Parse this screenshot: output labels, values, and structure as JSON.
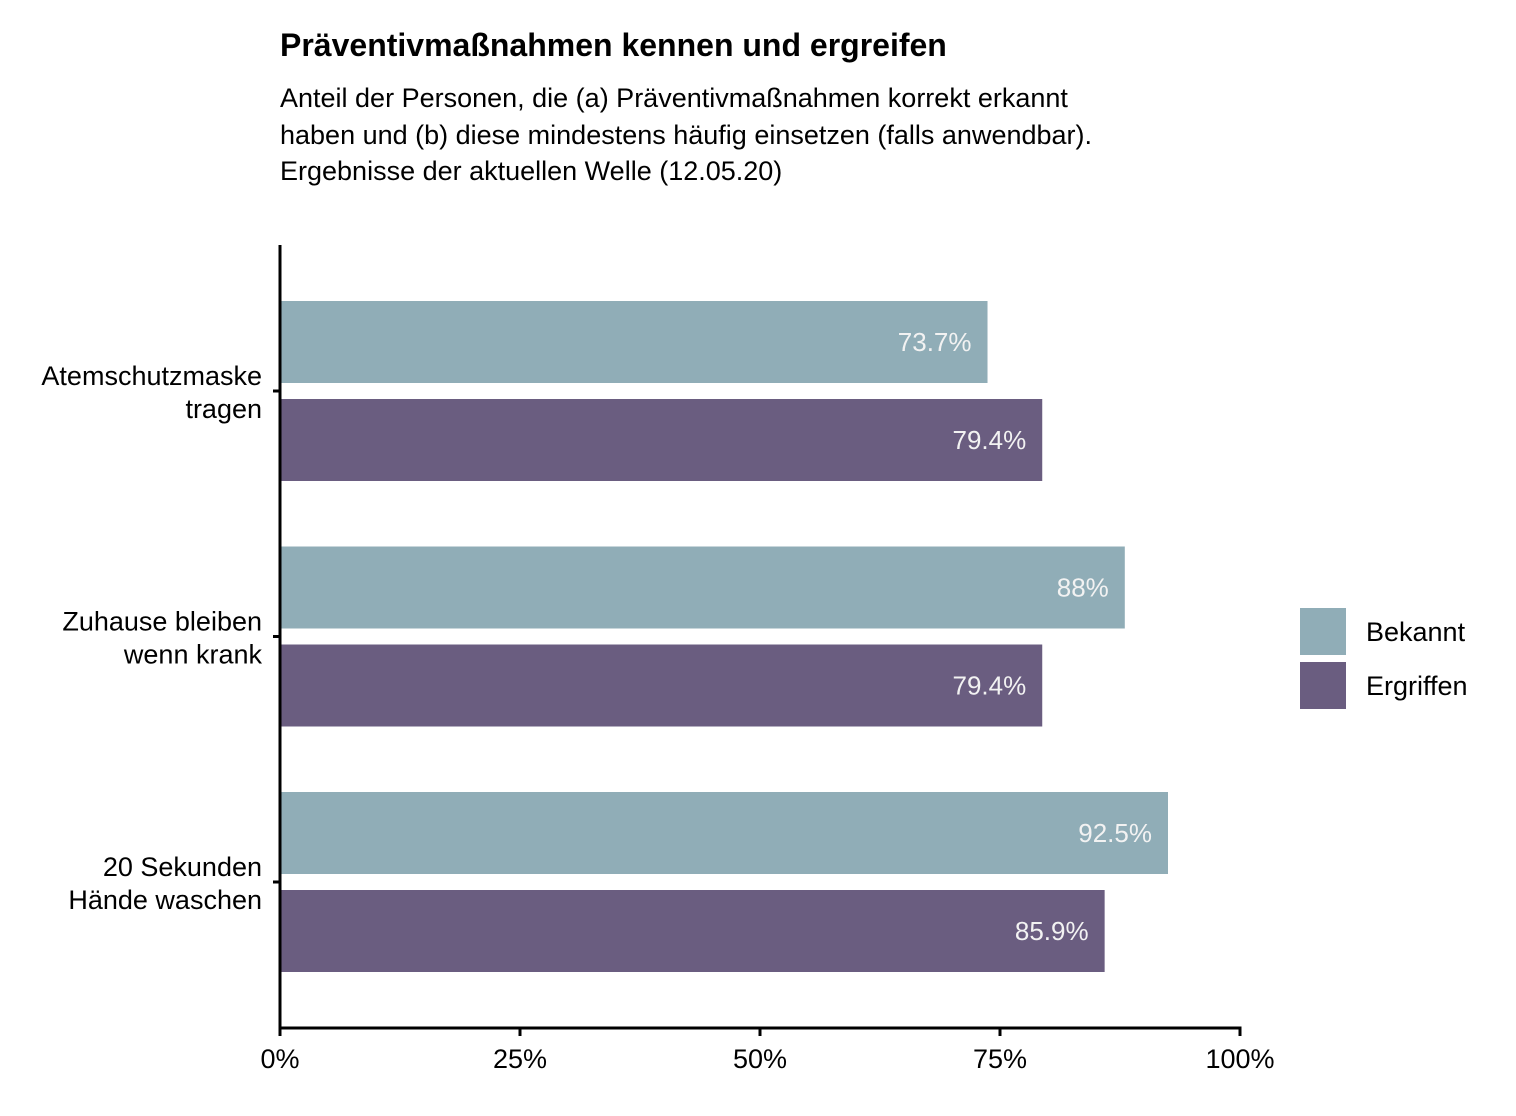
{
  "title": "Präventivmaßnahmen kennen und ergreifen",
  "subtitle_lines": [
    "Anteil der Personen, die (a) Präventivmaßnahmen korrekt erkannt",
    "haben und (b) diese mindestens häufig einsetzen (falls anwendbar).",
    "Ergebnisse der aktuellen Welle (12.05.20)"
  ],
  "chart_data": {
    "type": "bar",
    "orientation": "horizontal",
    "title": "Präventivmaßnahmen kennen und ergreifen",
    "categories": [
      [
        "Atemschutzmaske",
        "tragen"
      ],
      [
        "Zuhause bleiben",
        "wenn krank"
      ],
      [
        "20 Sekunden",
        "Hände waschen"
      ]
    ],
    "series": [
      {
        "name": "Bekannt",
        "color": "#90adb7",
        "values": [
          73.7,
          88,
          92.5
        ],
        "labels": [
          "73.7%",
          "88%",
          "92.5%"
        ]
      },
      {
        "name": "Ergriffen",
        "color": "#6a5d80",
        "values": [
          79.4,
          79.4,
          85.9
        ],
        "labels": [
          "79.4%",
          "79.4%",
          "85.9%"
        ]
      }
    ],
    "xlim": [
      0,
      100
    ],
    "xticks": [
      0,
      25,
      50,
      75,
      100
    ],
    "xtick_labels": [
      "0%",
      "25%",
      "50%",
      "75%",
      "100%"
    ],
    "xlabel": "",
    "ylabel": "",
    "grid": false,
    "legend_position": "right"
  }
}
